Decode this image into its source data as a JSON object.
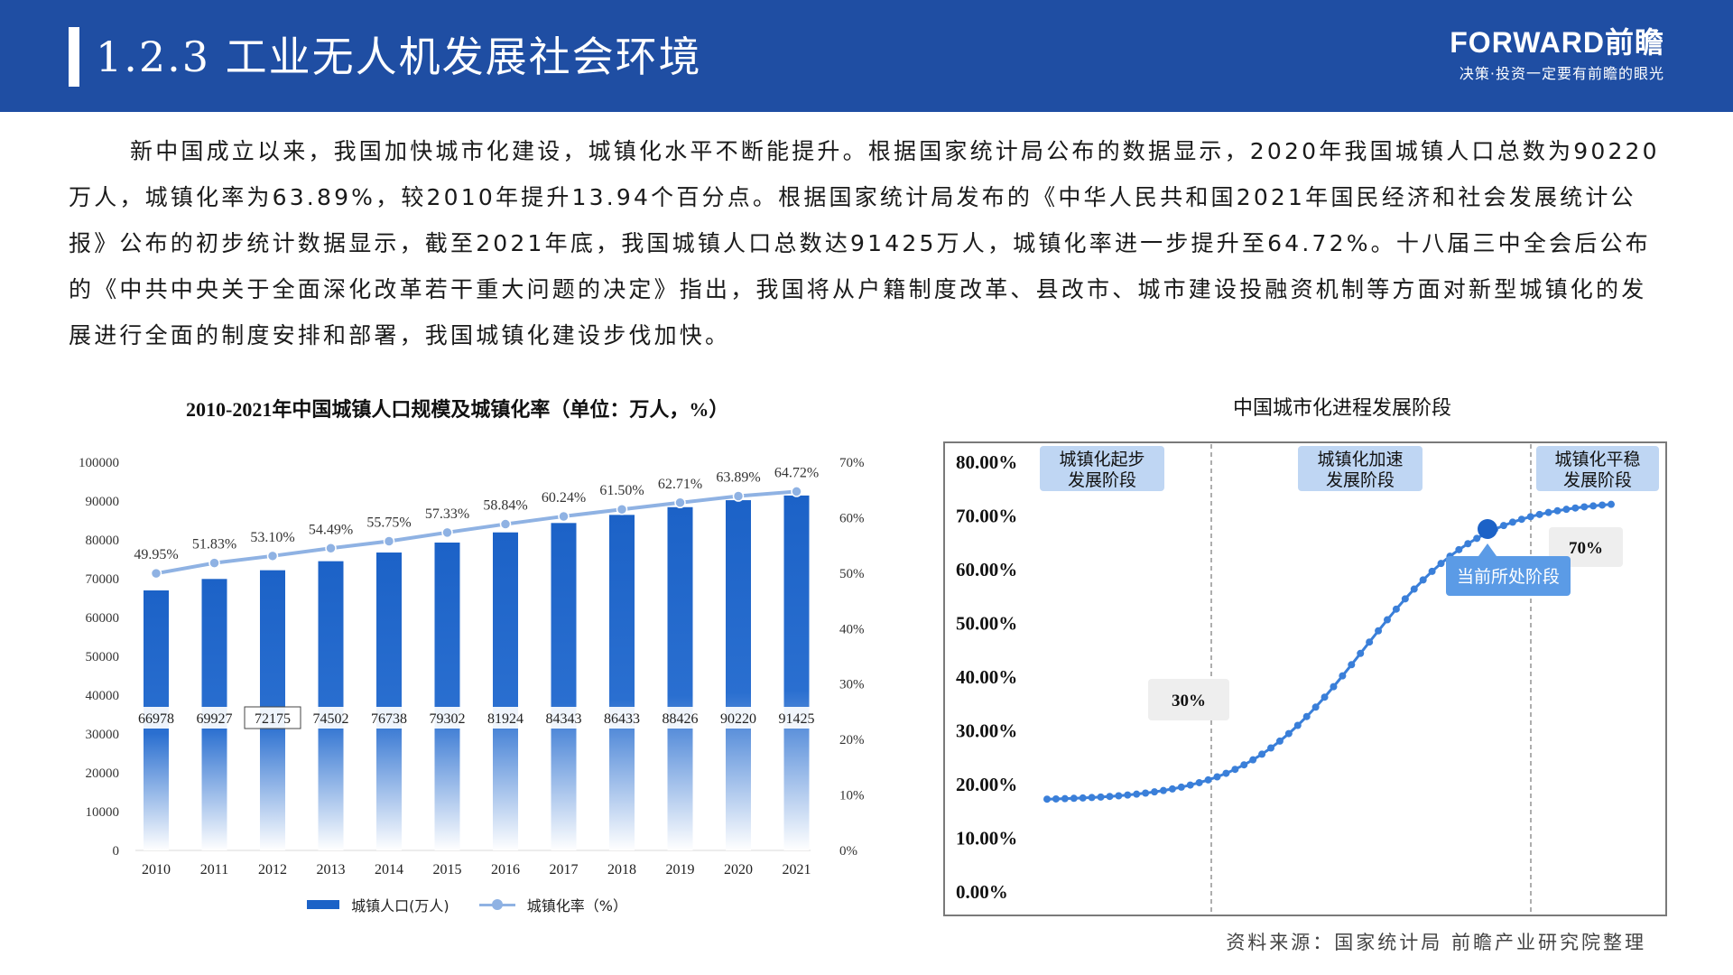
{
  "header": {
    "title": "1.2.3 工业无人机发展社会环境",
    "brand_logo": "FORWARD前瞻",
    "brand_slogan": "决策·投资一定要有前瞻的眼光"
  },
  "paragraph": "新中国成立以来，我国加快城市化建设，城镇化水平不断能提升。根据国家统计局公布的数据显示，2020年我国城镇人口总数为90220万人，城镇化率为63.89%，较2010年提升13.94个百分点。根据国家统计局发布的《中华人民共和国2021年国民经济和社会发展统计公报》公布的初步统计数据显示，截至2021年底，我国城镇人口总数达91425万人，城镇化率进一步提升至64.72%。十八届三中全会后公布的《中共中央关于全面深化改革若干重大问题的决定》指出，我国将从户籍制度改革、县改市、城市建设投融资机制等方面对新型城镇化的发展进行全面的制度安排和部署，我国城镇化建设步伐加快。",
  "source": "资料来源：国家统计局 前瞻产业研究院整理",
  "colors": {
    "primary": "#1f4ea3",
    "bar": "#1c62c7",
    "line": "#8fb2e3",
    "curve": "#3a7fd9",
    "callout": "#5b9be6"
  },
  "chart_data": [
    {
      "type": "bar",
      "title": "2010-2021年中国城镇人口规模及城镇化率（单位：万人，%）",
      "categories": [
        "2010",
        "2011",
        "2012",
        "2013",
        "2014",
        "2015",
        "2016",
        "2017",
        "2018",
        "2019",
        "2020",
        "2021"
      ],
      "series": [
        {
          "name": "城镇人口(万人)",
          "type": "bar",
          "axis": "left",
          "values": [
            66978,
            69927,
            72175,
            74502,
            76738,
            79302,
            81924,
            84343,
            86433,
            88426,
            90220,
            91425
          ],
          "labels": [
            "66978",
            "69927",
            "72175",
            "74502",
            "76738",
            "79302",
            "81924",
            "84343",
            "86433",
            "88426",
            "90220",
            "91425"
          ]
        },
        {
          "name": "城镇化率（%）",
          "type": "line",
          "axis": "right",
          "values": [
            49.95,
            51.83,
            53.1,
            54.49,
            55.75,
            57.33,
            58.84,
            60.24,
            61.5,
            62.71,
            63.89,
            64.72
          ],
          "labels": [
            "49.95%",
            "51.83%",
            "53.10%",
            "54.49%",
            "55.75%",
            "57.33%",
            "58.84%",
            "60.24%",
            "61.50%",
            "62.71%",
            "63.89%",
            "64.72%"
          ]
        }
      ],
      "ylim_left": [
        0,
        100000
      ],
      "yticks_left": [
        "100000",
        "90000",
        "80000",
        "70000",
        "60000",
        "50000",
        "40000",
        "30000",
        "20000",
        "10000",
        "0"
      ],
      "ylim_right": [
        0,
        70
      ],
      "yticks_right": [
        "70%",
        "60%",
        "50%",
        "40%",
        "30%",
        "20%",
        "10%",
        "0%"
      ],
      "legend": "bottom",
      "grid": false
    },
    {
      "type": "line",
      "title": "中国城市化进程发展阶段",
      "curve": "logistic",
      "x": [
        0,
        1,
        2,
        3,
        4,
        5,
        6,
        7,
        8,
        9,
        10,
        11,
        12,
        13,
        14,
        15,
        16,
        17,
        18,
        19,
        20,
        21,
        22,
        23,
        24,
        25,
        26,
        27,
        28,
        29,
        30,
        31,
        32,
        33,
        34,
        35,
        36,
        37,
        38,
        39,
        40,
        41,
        42,
        43,
        44,
        45,
        46,
        47,
        48,
        49,
        50,
        51,
        52,
        53,
        54,
        55,
        56,
        57,
        58,
        59,
        60,
        61,
        62,
        63
      ],
      "ylim": [
        0,
        80
      ],
      "yticks": [
        "80.00%",
        "70.00%",
        "60.00%",
        "50.00%",
        "40.00%",
        "30.00%",
        "20.00%",
        "10.00%",
        "0.00%"
      ],
      "grid": false,
      "stages": [
        {
          "line1": "城镇化起步",
          "line2": "发展阶段"
        },
        {
          "line1": "城镇化加速",
          "line2": "发展阶段"
        },
        {
          "line1": "城镇化平稳",
          "line2": "发展阶段"
        }
      ],
      "threshold_labels": [
        "30%",
        "70%"
      ],
      "current_marker_label": "当前所处阶段"
    }
  ]
}
